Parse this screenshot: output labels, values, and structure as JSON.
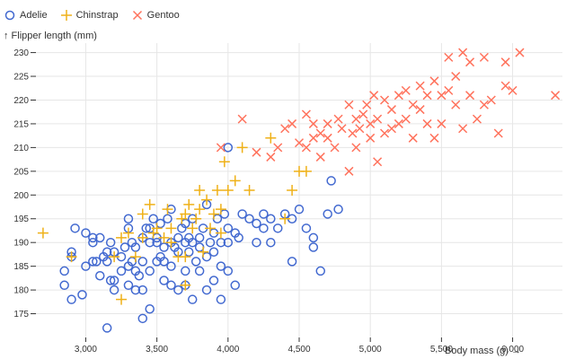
{
  "chart_data": {
    "type": "scatter",
    "xlabel": "Body mass (g) →",
    "ylabel": "↑ Flipper length (mm)",
    "xlim": [
      2650,
      6350
    ],
    "ylim": [
      170,
      232
    ],
    "xticks": [
      3000,
      3500,
      4000,
      4500,
      5000,
      5500,
      6000
    ],
    "xtick_labels": [
      "3,000",
      "3,500",
      "4,000",
      "4,500",
      "5,000",
      "5,500",
      "6,000"
    ],
    "yticks": [
      175,
      180,
      185,
      190,
      195,
      200,
      205,
      210,
      215,
      220,
      225,
      230
    ],
    "grid": true,
    "legend_position": "top-left",
    "series": [
      {
        "name": "Adelie",
        "marker": "circle",
        "color": "#4269d0",
        "points": [
          [
            2850,
            181
          ],
          [
            2850,
            184
          ],
          [
            2900,
            178
          ],
          [
            2900,
            187
          ],
          [
            2900,
            188
          ],
          [
            2925,
            193
          ],
          [
            2975,
            179
          ],
          [
            3000,
            185
          ],
          [
            3000,
            192
          ],
          [
            3050,
            186
          ],
          [
            3050,
            190
          ],
          [
            3050,
            191
          ],
          [
            3075,
            186
          ],
          [
            3100,
            183
          ],
          [
            3100,
            191
          ],
          [
            3125,
            187
          ],
          [
            3150,
            172
          ],
          [
            3150,
            186
          ],
          [
            3150,
            188
          ],
          [
            3175,
            182
          ],
          [
            3175,
            190
          ],
          [
            3200,
            180
          ],
          [
            3200,
            182
          ],
          [
            3200,
            188
          ],
          [
            3250,
            184
          ],
          [
            3250,
            187
          ],
          [
            3275,
            189
          ],
          [
            3300,
            181
          ],
          [
            3300,
            185
          ],
          [
            3300,
            193
          ],
          [
            3300,
            195
          ],
          [
            3325,
            186
          ],
          [
            3325,
            190
          ],
          [
            3350,
            180
          ],
          [
            3350,
            184
          ],
          [
            3350,
            189
          ],
          [
            3375,
            183
          ],
          [
            3400,
            174
          ],
          [
            3400,
            180
          ],
          [
            3400,
            186
          ],
          [
            3400,
            191
          ],
          [
            3425,
            193
          ],
          [
            3450,
            176
          ],
          [
            3450,
            184
          ],
          [
            3450,
            190
          ],
          [
            3450,
            193
          ],
          [
            3475,
            195
          ],
          [
            3500,
            186
          ],
          [
            3500,
            190
          ],
          [
            3500,
            191
          ],
          [
            3525,
            187
          ],
          [
            3525,
            194
          ],
          [
            3550,
            182
          ],
          [
            3550,
            186
          ],
          [
            3550,
            189
          ],
          [
            3575,
            195
          ],
          [
            3600,
            181
          ],
          [
            3600,
            185
          ],
          [
            3600,
            190
          ],
          [
            3600,
            197
          ],
          [
            3625,
            189
          ],
          [
            3650,
            180
          ],
          [
            3650,
            188
          ],
          [
            3650,
            191
          ],
          [
            3675,
            193
          ],
          [
            3700,
            181
          ],
          [
            3700,
            184
          ],
          [
            3700,
            190
          ],
          [
            3700,
            194
          ],
          [
            3725,
            188
          ],
          [
            3725,
            191
          ],
          [
            3750,
            178
          ],
          [
            3750,
            190
          ],
          [
            3750,
            195
          ],
          [
            3775,
            186
          ],
          [
            3800,
            184
          ],
          [
            3800,
            189
          ],
          [
            3800,
            191
          ],
          [
            3825,
            193
          ],
          [
            3850,
            180
          ],
          [
            3850,
            187
          ],
          [
            3850,
            198
          ],
          [
            3875,
            190
          ],
          [
            3900,
            182
          ],
          [
            3900,
            188
          ],
          [
            3900,
            192
          ],
          [
            3925,
            195
          ],
          [
            3950,
            178
          ],
          [
            3950,
            185
          ],
          [
            3950,
            190
          ],
          [
            3975,
            196
          ],
          [
            4000,
            184
          ],
          [
            4000,
            190
          ],
          [
            4000,
            193
          ],
          [
            4000,
            210
          ],
          [
            4050,
            181
          ],
          [
            4050,
            192
          ],
          [
            4075,
            191
          ],
          [
            4100,
            196
          ],
          [
            4150,
            195
          ],
          [
            4200,
            190
          ],
          [
            4200,
            194
          ],
          [
            4250,
            193
          ],
          [
            4250,
            196
          ],
          [
            4300,
            190
          ],
          [
            4300,
            195
          ],
          [
            4350,
            193
          ],
          [
            4400,
            196
          ],
          [
            4450,
            186
          ],
          [
            4450,
            195
          ],
          [
            4500,
            197
          ],
          [
            4550,
            193
          ],
          [
            4600,
            189
          ],
          [
            4600,
            191
          ],
          [
            4650,
            184
          ],
          [
            4700,
            196
          ],
          [
            4725,
            203
          ],
          [
            4775,
            197
          ]
        ]
      },
      {
        "name": "Chinstrap",
        "marker": "plus",
        "color": "#efb118",
        "points": [
          [
            2700,
            192
          ],
          [
            2900,
            187
          ],
          [
            3200,
            187
          ],
          [
            3250,
            178
          ],
          [
            3250,
            191
          ],
          [
            3300,
            192
          ],
          [
            3350,
            187
          ],
          [
            3400,
            191
          ],
          [
            3400,
            196
          ],
          [
            3450,
            198
          ],
          [
            3475,
            192
          ],
          [
            3500,
            193
          ],
          [
            3550,
            191
          ],
          [
            3575,
            197
          ],
          [
            3600,
            190
          ],
          [
            3600,
            193
          ],
          [
            3650,
            187
          ],
          [
            3675,
            195
          ],
          [
            3700,
            181
          ],
          [
            3700,
            187
          ],
          [
            3700,
            196
          ],
          [
            3725,
            198
          ],
          [
            3750,
            193
          ],
          [
            3775,
            195
          ],
          [
            3800,
            197
          ],
          [
            3800,
            201
          ],
          [
            3825,
            188
          ],
          [
            3850,
            199
          ],
          [
            3875,
            193
          ],
          [
            3900,
            196
          ],
          [
            3925,
            201
          ],
          [
            3950,
            192
          ],
          [
            3950,
            197
          ],
          [
            3975,
            207
          ],
          [
            4000,
            201
          ],
          [
            4050,
            203
          ],
          [
            4100,
            210
          ],
          [
            4150,
            201
          ],
          [
            4300,
            212
          ],
          [
            4400,
            195
          ],
          [
            4450,
            201
          ],
          [
            4500,
            205
          ],
          [
            4550,
            205
          ]
        ]
      },
      {
        "name": "Gentoo",
        "marker": "cross",
        "color": "#ff725c",
        "points": [
          [
            3950,
            210
          ],
          [
            4100,
            216
          ],
          [
            4200,
            209
          ],
          [
            4300,
            208
          ],
          [
            4350,
            210
          ],
          [
            4400,
            214
          ],
          [
            4450,
            215
          ],
          [
            4500,
            211
          ],
          [
            4550,
            210
          ],
          [
            4550,
            217
          ],
          [
            4600,
            212
          ],
          [
            4600,
            215
          ],
          [
            4650,
            208
          ],
          [
            4650,
            213
          ],
          [
            4700,
            212
          ],
          [
            4700,
            215
          ],
          [
            4750,
            210
          ],
          [
            4775,
            216
          ],
          [
            4800,
            214
          ],
          [
            4850,
            219
          ],
          [
            4850,
            205
          ],
          [
            4875,
            213
          ],
          [
            4900,
            216
          ],
          [
            4900,
            210
          ],
          [
            4925,
            214
          ],
          [
            4950,
            217
          ],
          [
            4975,
            219
          ],
          [
            5000,
            215
          ],
          [
            5000,
            212
          ],
          [
            5025,
            221
          ],
          [
            5050,
            207
          ],
          [
            5050,
            216
          ],
          [
            5100,
            213
          ],
          [
            5100,
            220
          ],
          [
            5150,
            214
          ],
          [
            5150,
            218
          ],
          [
            5200,
            215
          ],
          [
            5200,
            221
          ],
          [
            5250,
            216
          ],
          [
            5250,
            222
          ],
          [
            5300,
            212
          ],
          [
            5300,
            219
          ],
          [
            5350,
            218
          ],
          [
            5350,
            223
          ],
          [
            5400,
            215
          ],
          [
            5400,
            221
          ],
          [
            5450,
            224
          ],
          [
            5450,
            212
          ],
          [
            5500,
            215
          ],
          [
            5500,
            221
          ],
          [
            5550,
            222
          ],
          [
            5550,
            229
          ],
          [
            5600,
            219
          ],
          [
            5600,
            225
          ],
          [
            5650,
            214
          ],
          [
            5650,
            230
          ],
          [
            5700,
            221
          ],
          [
            5700,
            228
          ],
          [
            5750,
            216
          ],
          [
            5800,
            219
          ],
          [
            5800,
            229
          ],
          [
            5850,
            220
          ],
          [
            5900,
            213
          ],
          [
            5950,
            228
          ],
          [
            5950,
            223
          ],
          [
            6000,
            222
          ],
          [
            6050,
            230
          ],
          [
            6300,
            221
          ]
        ]
      }
    ]
  }
}
